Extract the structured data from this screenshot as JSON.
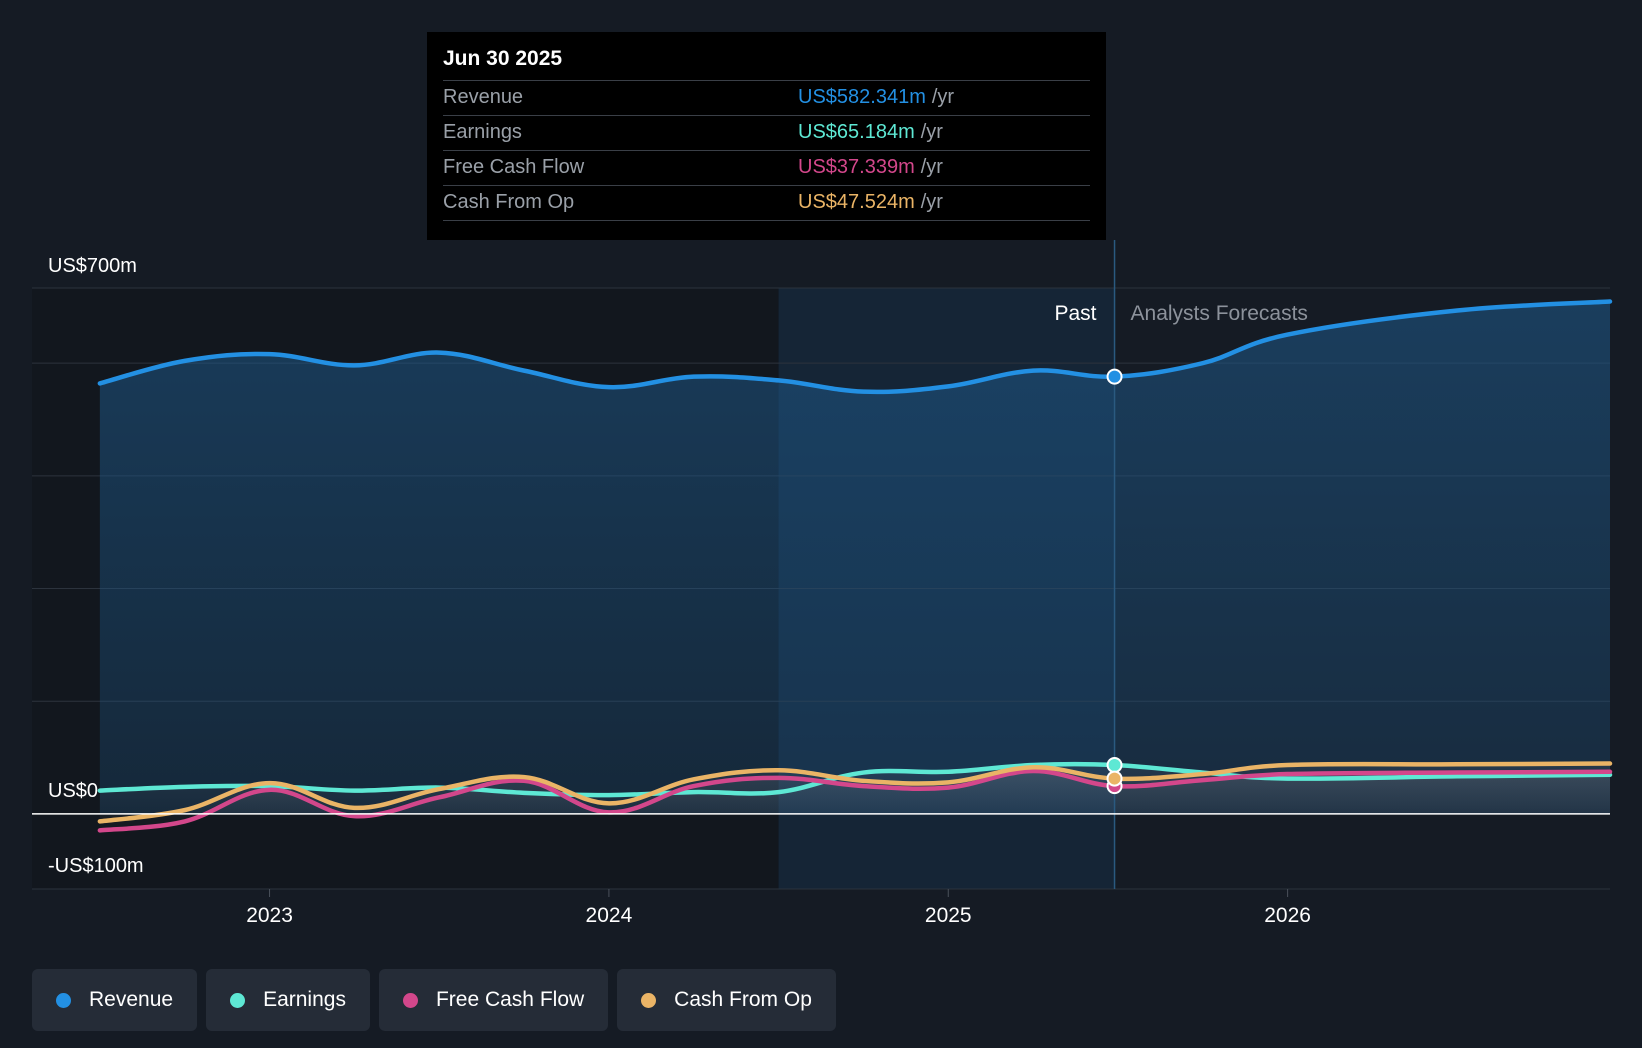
{
  "chart_data": {
    "type": "line",
    "y_axis": {
      "top_label": "US$700m",
      "zero_label": "US$0",
      "bottom_label": "-US$100m",
      "ylim": [
        -100,
        700
      ]
    },
    "x_axis": {
      "ticks": [
        "2023",
        "2024",
        "2025",
        "2026"
      ],
      "tick_values": [
        2023.0,
        2024.0,
        2025.0,
        2026.0
      ],
      "xlim": [
        2022.3,
        2026.95
      ]
    },
    "past_label": "Past",
    "forecast_label": "Analysts Forecasts",
    "divider_x": 2025.49,
    "highlight_start_x": 2024.5,
    "series": [
      {
        "name": "Revenue",
        "color": "#2390e3",
        "fill": true,
        "points": [
          [
            2022.5,
            573
          ],
          [
            2022.75,
            603
          ],
          [
            2023.0,
            612
          ],
          [
            2023.25,
            597
          ],
          [
            2023.5,
            614
          ],
          [
            2023.75,
            590
          ],
          [
            2024.0,
            568
          ],
          [
            2024.25,
            582
          ],
          [
            2024.5,
            577
          ],
          [
            2024.75,
            562
          ],
          [
            2025.0,
            569
          ],
          [
            2025.25,
            590
          ],
          [
            2025.49,
            582
          ],
          [
            2025.75,
            600
          ],
          [
            2026.0,
            638
          ],
          [
            2026.5,
            670
          ],
          [
            2026.95,
            682
          ]
        ]
      },
      {
        "name": "Earnings",
        "color": "#5ee8d4",
        "points": [
          [
            2022.5,
            31
          ],
          [
            2022.75,
            36
          ],
          [
            2023.0,
            37
          ],
          [
            2023.25,
            31
          ],
          [
            2023.5,
            35
          ],
          [
            2023.75,
            28
          ],
          [
            2024.0,
            25
          ],
          [
            2024.25,
            29
          ],
          [
            2024.5,
            29
          ],
          [
            2024.75,
            55
          ],
          [
            2025.0,
            56
          ],
          [
            2025.25,
            65
          ],
          [
            2025.49,
            65
          ],
          [
            2025.75,
            55
          ],
          [
            2026.0,
            47
          ],
          [
            2026.5,
            50
          ],
          [
            2026.95,
            52
          ]
        ]
      },
      {
        "name": "Free Cash Flow",
        "color": "#d3478b",
        "points": [
          [
            2022.5,
            -22
          ],
          [
            2022.75,
            -10
          ],
          [
            2023.0,
            32
          ],
          [
            2023.25,
            -3
          ],
          [
            2023.5,
            22
          ],
          [
            2023.75,
            44
          ],
          [
            2024.0,
            2
          ],
          [
            2024.25,
            37
          ],
          [
            2024.5,
            48
          ],
          [
            2024.75,
            37
          ],
          [
            2025.0,
            35
          ],
          [
            2025.25,
            57
          ],
          [
            2025.49,
            37
          ],
          [
            2025.75,
            45
          ],
          [
            2026.0,
            53
          ],
          [
            2026.5,
            55
          ],
          [
            2026.95,
            56
          ]
        ]
      },
      {
        "name": "Cash From Op",
        "color": "#eab466",
        "points": [
          [
            2022.5,
            -10
          ],
          [
            2022.75,
            5
          ],
          [
            2023.0,
            41
          ],
          [
            2023.25,
            8
          ],
          [
            2023.5,
            33
          ],
          [
            2023.75,
            49
          ],
          [
            2024.0,
            14
          ],
          [
            2024.25,
            46
          ],
          [
            2024.5,
            58
          ],
          [
            2024.75,
            44
          ],
          [
            2025.0,
            42
          ],
          [
            2025.25,
            62
          ],
          [
            2025.49,
            47
          ],
          [
            2025.75,
            53
          ],
          [
            2026.0,
            65
          ],
          [
            2026.5,
            66
          ],
          [
            2026.95,
            67
          ]
        ]
      }
    ]
  },
  "tooltip": {
    "date": "Jun 30 2025",
    "unit": "/yr",
    "rows": [
      {
        "label": "Revenue",
        "value": "US$582.341m",
        "color": "#2390e3"
      },
      {
        "label": "Earnings",
        "value": "US$65.184m",
        "color": "#5ee8d4"
      },
      {
        "label": "Free Cash Flow",
        "value": "US$37.339m",
        "color": "#d3478b"
      },
      {
        "label": "Cash From Op",
        "value": "US$47.524m",
        "color": "#eab466"
      }
    ]
  },
  "legend": [
    {
      "label": "Revenue",
      "color": "#2390e3"
    },
    {
      "label": "Earnings",
      "color": "#5ee8d4"
    },
    {
      "label": "Free Cash Flow",
      "color": "#d3478b"
    },
    {
      "label": "Cash From Op",
      "color": "#eab466"
    }
  ]
}
